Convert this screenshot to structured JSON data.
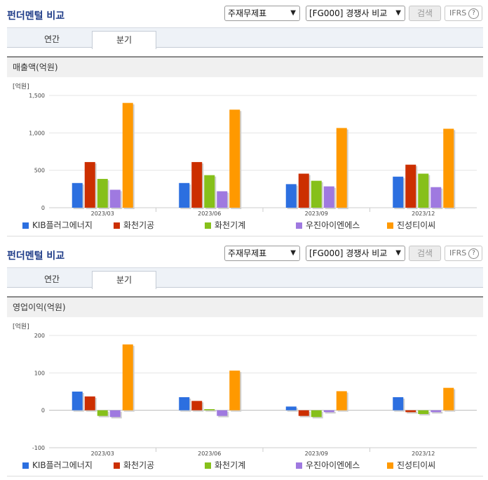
{
  "header": {
    "title": "펀더멘털 비교",
    "select_statement": "주재무제표",
    "select_compare": "[FG000] 경쟁사 비교",
    "search_label": "검색",
    "ifrs_label": "IFRS",
    "help_glyph": "?"
  },
  "tabs": [
    "연간",
    "분기"
  ],
  "active_tab": "분기",
  "series_colors": [
    "#2c6fe0",
    "#cc2f00",
    "#86c01a",
    "#9f79e0",
    "#ff9900"
  ],
  "charts": [
    {
      "section_label": "매출액(억원)",
      "chart_data": {
        "type": "bar",
        "unit_label": "[억원]",
        "categories": [
          "2023/03",
          "2023/06",
          "2023/09",
          "2023/12"
        ],
        "ylim": [
          0,
          1500
        ],
        "yticks": [
          0,
          500,
          1000,
          1500
        ],
        "ytick_labels": [
          "0",
          "500",
          "1,000",
          "1,500"
        ],
        "grid": true,
        "legend": "bottom",
        "series": [
          {
            "name": "KIB플러그에너지",
            "values": [
              330,
              330,
              315,
              415
            ]
          },
          {
            "name": "화천기공",
            "values": [
              610,
              610,
              455,
              575
            ]
          },
          {
            "name": "화천기계",
            "values": [
              385,
              435,
              360,
              455
            ]
          },
          {
            "name": "우진아이엔에스",
            "values": [
              240,
              220,
              285,
              275
            ]
          },
          {
            "name": "진성티이씨",
            "values": [
              1400,
              1310,
              1065,
              1055
            ]
          }
        ]
      }
    },
    {
      "section_label": "영업이익(억원)",
      "chart_data": {
        "type": "bar",
        "unit_label": "[억원]",
        "categories": [
          "2023/03",
          "2023/06",
          "2023/09",
          "2023/12"
        ],
        "ylim": [
          -100,
          200
        ],
        "yticks": [
          -100,
          0,
          100,
          200
        ],
        "ytick_labels": [
          "-100",
          "0",
          "100",
          "200"
        ],
        "grid": true,
        "legend": "bottom",
        "series": [
          {
            "name": "KIB플러그에너지",
            "values": [
              50,
              35,
              10,
              35
            ]
          },
          {
            "name": "화천기공",
            "values": [
              37,
              25,
              -15,
              -5
            ]
          },
          {
            "name": "화천기계",
            "values": [
              -15,
              3,
              -18,
              -10
            ]
          },
          {
            "name": "우진아이엔에스",
            "values": [
              -18,
              -15,
              -5,
              -5
            ]
          },
          {
            "name": "진성티이씨",
            "values": [
              176,
              106,
              51,
              60
            ]
          }
        ]
      }
    }
  ]
}
